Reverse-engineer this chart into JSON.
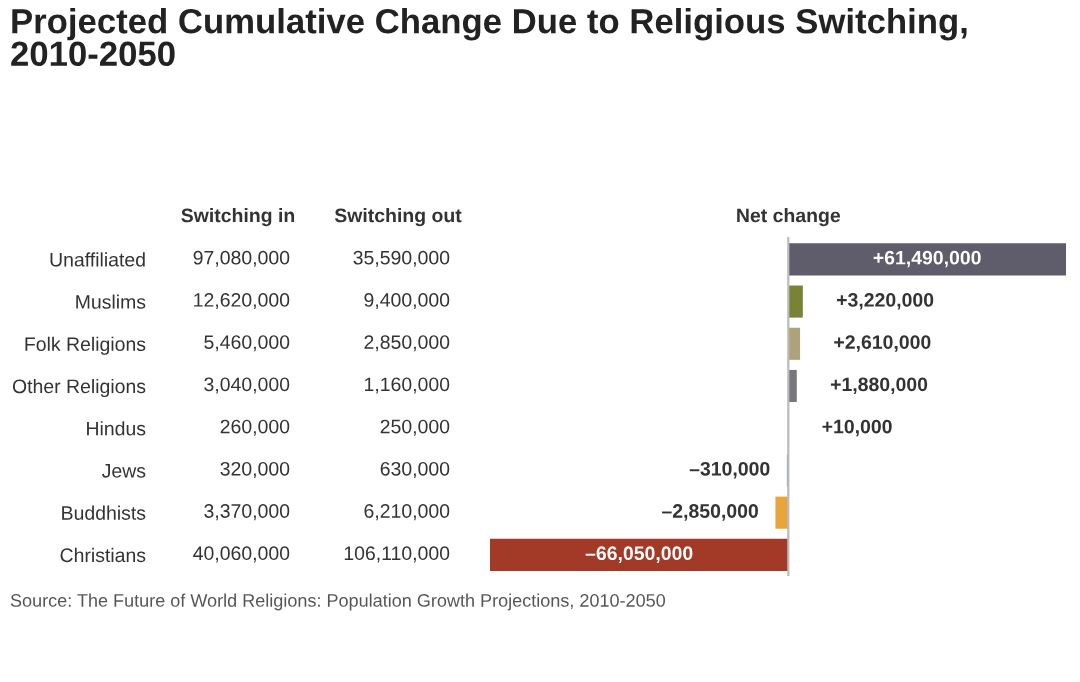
{
  "chart_data": [
    {
      "type": "bar",
      "orientation": "horizontal",
      "title": "Net change",
      "categories": [
        "Unaffiliated",
        "Muslims",
        "Folk Religions",
        "Other Religions",
        "Hindus",
        "Jews",
        "Buddhists",
        "Christians"
      ],
      "values": [
        61490000,
        3220000,
        2610000,
        1880000,
        10000,
        -310000,
        -2850000,
        -66050000
      ],
      "colors": [
        "#5f5d6b",
        "#7a8236",
        "#aea27a",
        "#77777d",
        "#d9c89c",
        "#5b8bb0",
        "#e8a53a",
        "#a33a27"
      ],
      "value_labels": [
        "+61,490,000",
        "+3,220,000",
        "+2,610,000",
        "+1,880,000",
        "+10,000",
        "–310,000",
        "–2,850,000",
        "–66,050,000"
      ]
    },
    {
      "type": "other",
      "title": "Projected Cumulative Change Due to Religious Switching, 2010-2050",
      "annotations": [
        "Source: The Future of World Religions: Population Growth Projections, 2010-2050",
        "Switching in",
        "97,080,000",
        "12,620,000",
        "5,460,000",
        "3,040,000",
        "260,000",
        "320,000",
        "3,370,000",
        "40,060,000",
        "Switching out",
        "35,590,000",
        "9,400,000",
        "2,850,000",
        "1,160,000",
        "250,000",
        "630,000",
        "6,210,000",
        "106,110,000"
      ]
    }
  ]
}
